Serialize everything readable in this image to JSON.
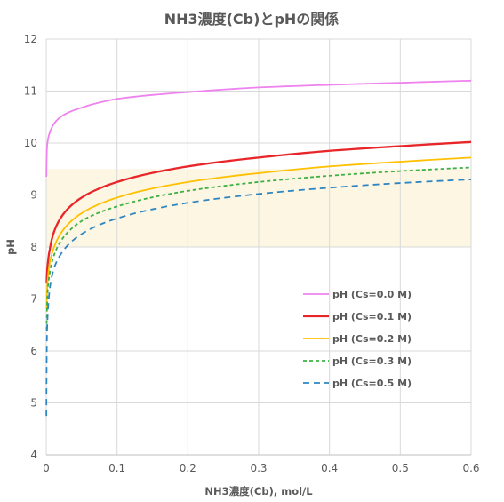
{
  "chart_data": {
    "type": "line",
    "title": "NH3濃度(Cb)とpHの関係",
    "xlabel": "NH3濃度(Cb), mol/L",
    "ylabel": "pH",
    "xlim": [
      0,
      0.6
    ],
    "ylim": [
      4,
      12
    ],
    "xticks": [
      "0",
      "0.1",
      "0.2",
      "0.3",
      "0.4",
      "0.5",
      "0.6"
    ],
    "yticks": [
      "4",
      "5",
      "6",
      "7",
      "8",
      "9",
      "10",
      "11",
      "12"
    ],
    "grid": true,
    "shaded_band": {
      "y_from": 8.0,
      "y_to": 9.5,
      "color": "#fdf6e3"
    },
    "legend_position": "right",
    "series": [
      {
        "name": "pH (Cs=0.0 M)",
        "color": "#ee82ee",
        "dash": "solid",
        "x": [
          0.0002,
          0.001,
          0.005,
          0.01,
          0.02,
          0.05,
          0.1,
          0.2,
          0.3,
          0.4,
          0.5,
          0.6
        ],
        "y": [
          9.35,
          9.9,
          10.2,
          10.35,
          10.5,
          10.68,
          10.85,
          10.98,
          11.07,
          11.12,
          11.16,
          11.2
        ]
      },
      {
        "name": "pH (Cs=0.1 M)",
        "color": "#e8262a",
        "dash": "solid",
        "x": [
          0.0005,
          0.002,
          0.005,
          0.01,
          0.02,
          0.05,
          0.1,
          0.2,
          0.3,
          0.4,
          0.5,
          0.6
        ],
        "y": [
          7.3,
          7.65,
          7.95,
          8.25,
          8.55,
          8.95,
          9.25,
          9.55,
          9.72,
          9.85,
          9.94,
          10.02
        ]
      },
      {
        "name": "pH (Cs=0.2 M)",
        "color": "#ffc000",
        "dash": "solid",
        "x": [
          0.0005,
          0.002,
          0.005,
          0.01,
          0.02,
          0.05,
          0.1,
          0.2,
          0.3,
          0.4,
          0.5,
          0.6
        ],
        "y": [
          6.8,
          7.35,
          7.7,
          7.95,
          8.25,
          8.65,
          8.95,
          9.25,
          9.42,
          9.55,
          9.64,
          9.72
        ]
      },
      {
        "name": "pH (Cs=0.3 M)",
        "color": "#3cb043",
        "dash": "dashed",
        "x": [
          0.0005,
          0.002,
          0.005,
          0.01,
          0.02,
          0.05,
          0.1,
          0.2,
          0.3,
          0.4,
          0.5,
          0.6
        ],
        "y": [
          6.4,
          7.15,
          7.5,
          7.8,
          8.1,
          8.5,
          8.78,
          9.08,
          9.25,
          9.37,
          9.46,
          9.53
        ]
      },
      {
        "name": "pH (Cs=0.5 M)",
        "color": "#2e86c1",
        "dash": "dashed",
        "x": [
          0.0002,
          0.001,
          0.003,
          0.005,
          0.01,
          0.02,
          0.05,
          0.1,
          0.2,
          0.3,
          0.4,
          0.5,
          0.6
        ],
        "y": [
          4.75,
          6.3,
          6.9,
          7.2,
          7.55,
          7.85,
          8.25,
          8.55,
          8.85,
          9.02,
          9.14,
          9.23,
          9.3
        ]
      }
    ]
  }
}
